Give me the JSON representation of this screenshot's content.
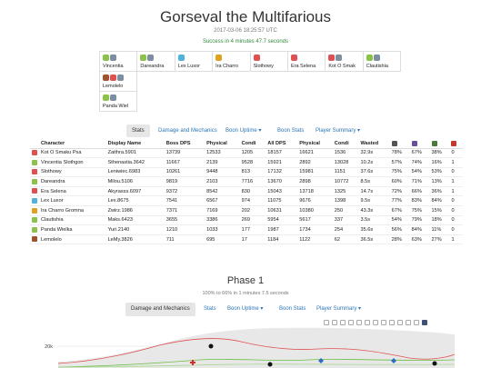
{
  "header": {
    "title": "Gorseval the Multifarious",
    "date": "2017-03-06 18:25:57 UTC",
    "result": "Success in 4 minutes 47.7 seconds"
  },
  "player_grid": [
    [
      {
        "name": "Vincentia",
        "icons": [
          "#8bc34a",
          "#7c8fa0"
        ]
      },
      {
        "name": "Dareandra",
        "icons": [
          "#8bc34a",
          "#7c8fa0"
        ]
      },
      {
        "name": "Lex Luxor",
        "icons": [
          "#4fb3d9"
        ]
      },
      {
        "name": "Ira Charro",
        "icons": [
          "#e0a020"
        ]
      },
      {
        "name": "Slothowy",
        "icons": [
          "#e05050"
        ]
      },
      {
        "name": "Era Selena",
        "icons": [
          "#e05050"
        ]
      },
      {
        "name": "Kot O Smak",
        "icons": [
          "#e05050",
          "#7c8fa0"
        ]
      },
      {
        "name": "Clautishia",
        "icons": [
          "#8bc34a",
          "#7c8fa0"
        ]
      }
    ],
    [
      {
        "name": "Lemolelo",
        "icons": [
          "#a0522d",
          "#e05050",
          "#7c8fa0"
        ]
      }
    ],
    [
      {
        "name": "Panda Wiel",
        "icons": [
          "#8bc34a",
          "#7c8fa0"
        ]
      }
    ]
  ],
  "tabs": {
    "stats": "Stats",
    "damage": "Damage and Mechanics",
    "boon_uptime": "Boon Uptime ▾",
    "boon_stats": "Boon Stats",
    "player_summary": "Player Summary ▾",
    "phase_damage": "Damage and Mechanics",
    "phase_stats": "Stats",
    "phase_boon_uptime": "Boon Uptime ▾",
    "phase_boon_stats": "Boon Stats",
    "phase_player_summary": "Player Summary ▾"
  },
  "table": {
    "headers": [
      "",
      "Character",
      "Display Name",
      "Boss DPS",
      "Physical",
      "Condi",
      "All DPS",
      "Physical",
      "Condi",
      "Wasted",
      "",
      "",
      "",
      ""
    ],
    "rows": [
      {
        "icon": "#e05050",
        "c": [
          "Kot O Smaku Psa",
          "Zaithra.5901",
          "13739",
          "12533",
          "1205",
          "18157",
          "16621",
          "1536",
          "32.9s",
          "78%",
          "67%",
          "38%",
          "0"
        ]
      },
      {
        "icon": "#8bc34a",
        "c": [
          "Vincentia Slothgon",
          "Sthenastia.3642",
          "11667",
          "2139",
          "9528",
          "15921",
          "2892",
          "13028",
          "10.2s",
          "57%",
          "74%",
          "16%",
          "1"
        ]
      },
      {
        "icon": "#e05050",
        "c": [
          "Slothowy",
          "Leniwiec.6983",
          "10261",
          "9448",
          "813",
          "17132",
          "15981",
          "1151",
          "37.6s",
          "75%",
          "54%",
          "53%",
          "0"
        ]
      },
      {
        "icon": "#8bc34a",
        "c": [
          "Dareandra",
          "Milou.5106",
          "9819",
          "2103",
          "7716",
          "13670",
          "2898",
          "10772",
          "8.5s",
          "60%",
          "71%",
          "13%",
          "1"
        ]
      },
      {
        "icon": "#e05050",
        "c": [
          "Era Selena",
          "Akyrasss.6097",
          "9372",
          "8542",
          "830",
          "15043",
          "13718",
          "1325",
          "14.7s",
          "72%",
          "66%",
          "36%",
          "1"
        ]
      },
      {
        "icon": "#4fb3d9",
        "c": [
          "Lex Luxor",
          "Lex.8675",
          "7541",
          "6567",
          "974",
          "11075",
          "9676",
          "1398",
          "9.5s",
          "77%",
          "83%",
          "84%",
          "0"
        ]
      },
      {
        "icon": "#e0a020",
        "c": [
          "Ira Charro Gromna",
          "Zwirz.1986",
          "7371",
          "7169",
          "202",
          "10631",
          "10380",
          "250",
          "43.3s",
          "67%",
          "75%",
          "15%",
          "0"
        ]
      },
      {
        "icon": "#8bc34a",
        "c": [
          "Clautishia",
          "Maks.6423",
          "3655",
          "3386",
          "269",
          "5954",
          "5617",
          "337",
          "3.5s",
          "54%",
          "79%",
          "18%",
          "0"
        ]
      },
      {
        "icon": "#8bc34a",
        "c": [
          "Panda Wielka",
          "Yuri.2140",
          "1210",
          "1033",
          "177",
          "1987",
          "1734",
          "254",
          "35.6s",
          "56%",
          "84%",
          "11%",
          "0"
        ]
      },
      {
        "icon": "#a0522d",
        "c": [
          "Lemolelo",
          "LeMy.3826",
          "711",
          "695",
          "17",
          "1184",
          "1122",
          "62",
          "36.5s",
          "28%",
          "63%",
          "27%",
          "1"
        ]
      }
    ]
  },
  "header_icons": [
    "#555555",
    "#6a4fa0",
    "#4a7a3a",
    "#c0392b"
  ],
  "phase": {
    "title": "Phase 1",
    "subtitle": "100% to 66% in 1 minutes 7.5 seconds"
  },
  "chart": {
    "y_tick_label": "20k"
  }
}
